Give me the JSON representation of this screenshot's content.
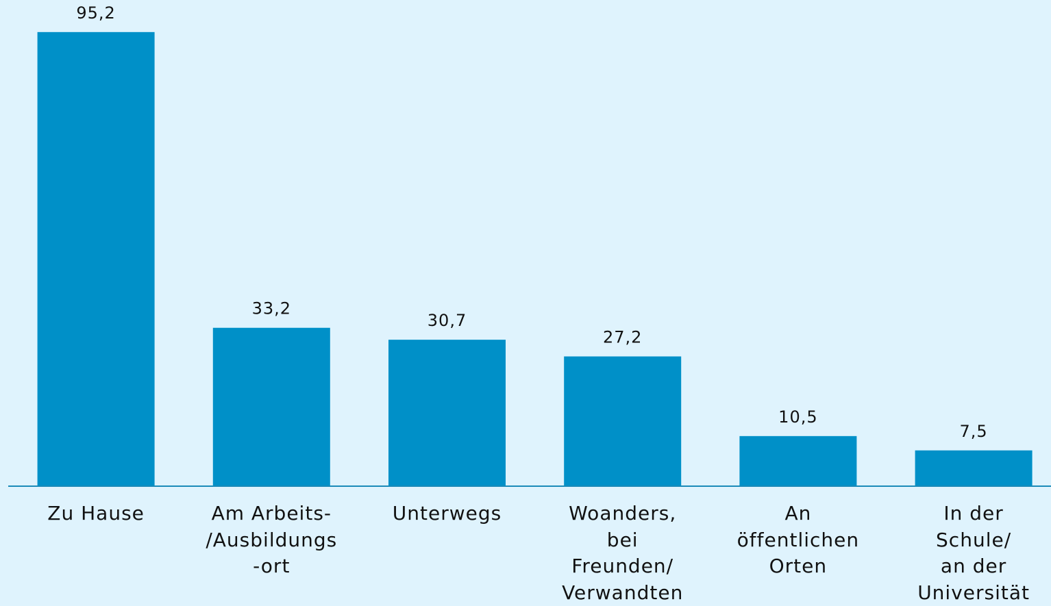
{
  "chart_data": {
    "type": "bar",
    "categories": [
      "Zu Hause",
      "Am Arbeits-\n/Ausbildungs\n-ort",
      "Unterwegs",
      "Woanders,\nbei\nFreunden/\nVerwandten",
      "An\nöffentlichen\nOrten",
      "In der\nSchule/\nan der\nUniversität"
    ],
    "values": [
      95.2,
      33.2,
      30.7,
      27.2,
      10.5,
      7.5
    ],
    "value_labels": [
      "95,2",
      "33,2",
      "30,7",
      "27,2",
      "10,5",
      "7,5"
    ],
    "color": "#0090c8",
    "ylim": [
      0,
      100
    ]
  }
}
